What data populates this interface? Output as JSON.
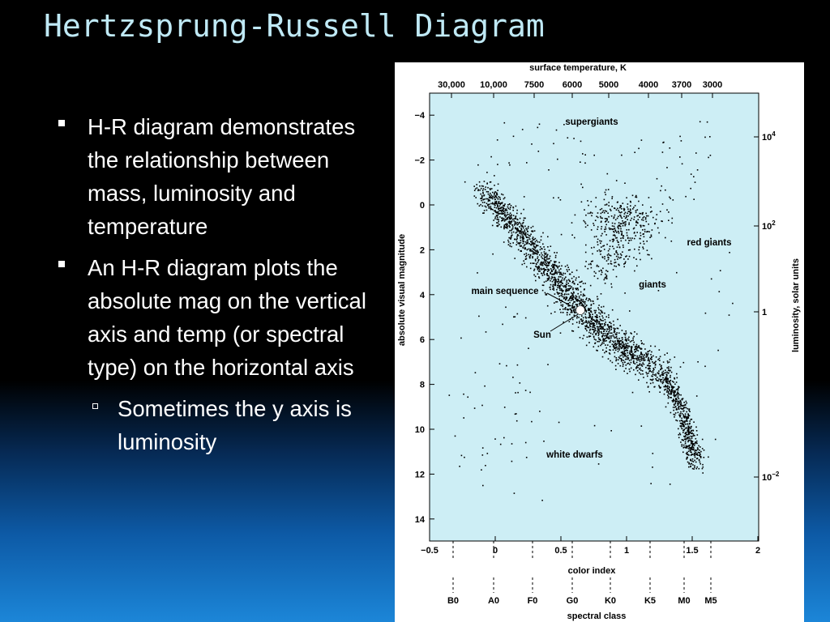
{
  "slide": {
    "title": "Hertzsprung-Russell Diagram",
    "bullets": [
      {
        "text": "H-R diagram demonstrates the relationship between mass, luminosity and temperature"
      },
      {
        "text": "An H-R diagram plots the absolute mag on the vertical axis and temp (or spectral type) on the horizontal axis",
        "sub": "Sometimes the y axis is luminosity"
      }
    ]
  },
  "figure": {
    "top_axis_title": "surface temperature, K",
    "top_ticks": [
      "30,000",
      "10,000",
      "7500",
      "6000",
      "5000",
      "4000",
      "3700",
      "3000"
    ],
    "left_axis_title": "absolute visual magnitude",
    "left_ticks": [
      "−4",
      "−2",
      "0",
      "2",
      "4",
      "6",
      "8",
      "10",
      "12",
      "14"
    ],
    "right_axis_title": "luminosity, solar units",
    "right_ticks": [
      {
        "base": "10",
        "exp": "4"
      },
      {
        "base": "10",
        "exp": "2"
      },
      {
        "base": "1",
        "exp": ""
      },
      {
        "base": "10",
        "exp": "−2"
      }
    ],
    "bottom_ticks": [
      "−0.5",
      "0",
      "0.5",
      "1",
      "1.5",
      "2"
    ],
    "bottom_axis_title": "color index",
    "spectral_ticks": [
      "B0",
      "A0",
      "F0",
      "G0",
      "K0",
      "K5",
      "M0",
      "M5"
    ],
    "spectral_title": "spectral class",
    "regions": {
      "supergiants": "supergiants",
      "red_giants": "red giants",
      "giants": "giants",
      "main_sequence": "main sequence",
      "sun": "Sun",
      "white_dwarfs": "white dwarfs"
    },
    "colors": {
      "plot_bg": "#cdeef5",
      "points": "#000000",
      "sun": "#ffffff"
    }
  },
  "chart_data": {
    "type": "scatter",
    "title": "",
    "xlabel": "color index",
    "ylabel": "absolute visual magnitude",
    "xlim": [
      -0.5,
      2
    ],
    "ylim": [
      15,
      -5
    ],
    "sun": {
      "x": 0.65,
      "y": 4.8
    },
    "series": [
      {
        "name": "main sequence",
        "path": [
          [
            0.0,
            0.3
          ],
          [
            0.3,
            2.5
          ],
          [
            0.55,
            4.2
          ],
          [
            0.7,
            5.5
          ],
          [
            0.9,
            6.5
          ],
          [
            1.2,
            7.6
          ],
          [
            1.4,
            9.0
          ],
          [
            1.5,
            10.6
          ],
          [
            1.6,
            12.0
          ]
        ]
      },
      {
        "name": "giants",
        "path": [
          [
            0.9,
            0.5
          ],
          [
            1.0,
            0.0
          ],
          [
            1.2,
            -0.5
          ],
          [
            1.4,
            -0.2
          ],
          [
            1.2,
            2.5
          ]
        ]
      },
      {
        "name": "white dwarfs",
        "path": [
          [
            -0.1,
            9.8
          ],
          [
            0.1,
            10.5
          ],
          [
            0.3,
            11.5
          ]
        ]
      }
    ]
  }
}
